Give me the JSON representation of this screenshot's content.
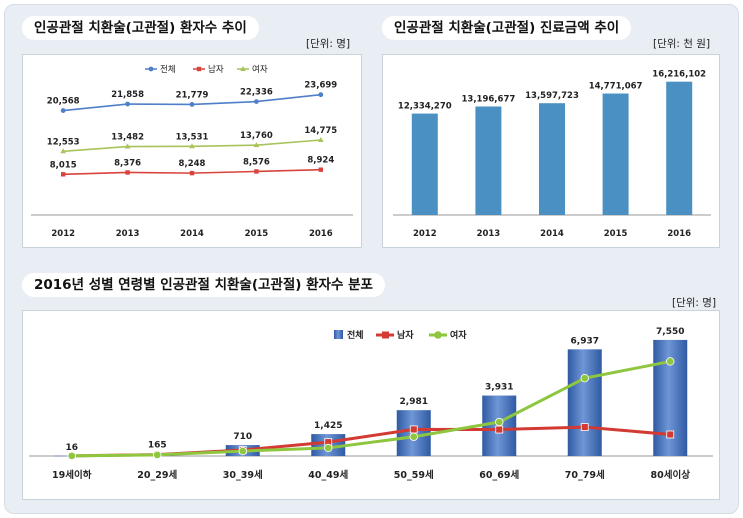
{
  "panels": {
    "patients": {
      "title": "인공관절 치환술(고관절) 환자수 추이",
      "unit": "[단위: 명]"
    },
    "cost": {
      "title": "인공관절 치환술(고관절) 진료금액 추이",
      "unit": "[단위: 천 원]"
    },
    "age": {
      "title": "2016년 성별 연령별 인공관절 치환술(고관절) 환자수 분포",
      "unit": "[단위: 명]"
    }
  },
  "chart_data": [
    {
      "type": "line",
      "categories": [
        "2012",
        "2013",
        "2014",
        "2015",
        "2016"
      ],
      "series": [
        {
          "name": "전체",
          "values": [
            20568,
            21858,
            21779,
            22336,
            23699
          ],
          "labels": [
            "20,568",
            "21,858",
            "21,779",
            "22,336",
            "23,699"
          ],
          "color": "#4f7fc8"
        },
        {
          "name": "남자",
          "values": [
            8015,
            8376,
            8248,
            8576,
            8924
          ],
          "labels": [
            "8,015",
            "8,376",
            "8,248",
            "8,576",
            "8,924"
          ],
          "color": "#d9433c"
        },
        {
          "name": "여자",
          "values": [
            12553,
            13482,
            13531,
            13760,
            14775
          ],
          "labels": [
            "12,553",
            "13,482",
            "13,531",
            "13,760",
            "14,775"
          ],
          "color": "#a7c45a"
        }
      ],
      "ylim": [
        0,
        26000
      ],
      "legend": "top-center",
      "grid": false
    },
    {
      "type": "bar",
      "categories": [
        "2012",
        "2013",
        "2014",
        "2015",
        "2016"
      ],
      "values": [
        12334270,
        13196677,
        13597723,
        14771067,
        16216102
      ],
      "labels": [
        "12,334,270",
        "13,196,677",
        "13,597,723",
        "14,771,067",
        "16,216,102"
      ],
      "ylim": [
        0,
        18000000
      ],
      "color": "#4a90c2",
      "grid": false
    },
    {
      "type": "bar",
      "categories": [
        "19세이하",
        "20_29세",
        "30_39세",
        "40_49세",
        "50_59세",
        "60_69세",
        "70_79세",
        "80세이상"
      ],
      "series": [
        {
          "name": "전체",
          "type": "bar",
          "values": [
            16,
            165,
            710,
            1425,
            2981,
            3931,
            6937,
            7550
          ],
          "labels": [
            "16",
            "165",
            "710",
            "1,425",
            "2,981",
            "3,931",
            "6,937",
            "7,550"
          ],
          "color": "#4a6fb5"
        },
        {
          "name": "남자",
          "type": "line",
          "values": [
            6,
            90,
            390,
            900,
            1730,
            1720,
            1880,
            1400
          ],
          "color": "#d23a33"
        },
        {
          "name": "여자",
          "type": "line",
          "values": [
            10,
            75,
            320,
            525,
            1250,
            2210,
            5060,
            6150
          ],
          "color": "#8ec63f"
        }
      ],
      "ylim": [
        0,
        8000
      ],
      "legend": "top-center",
      "grid": false
    }
  ]
}
